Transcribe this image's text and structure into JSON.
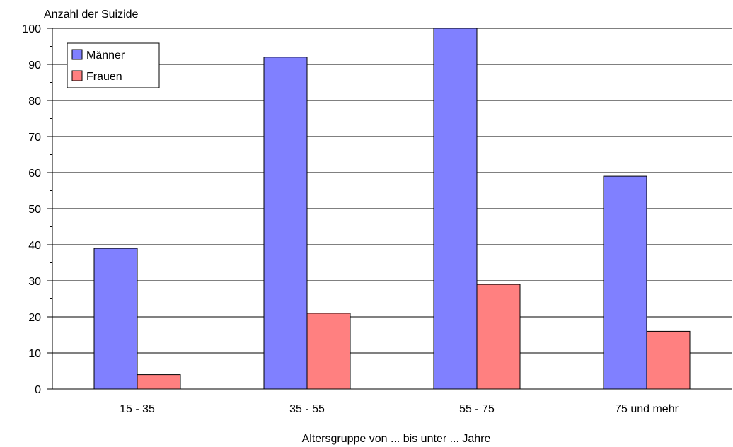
{
  "chart_data": {
    "type": "bar",
    "ylabel": "Anzahl der Suizide",
    "xlabel": "Altersgruppe von ... bis unter ... Jahre",
    "categories": [
      "15 - 35",
      "35 - 55",
      "55 - 75",
      "75 und mehr"
    ],
    "series": [
      {
        "name": "Männer",
        "values": [
          39,
          92,
          100,
          59
        ],
        "color": "#8080ff"
      },
      {
        "name": "Frauen",
        "values": [
          4,
          21,
          29,
          16
        ],
        "color": "#ff8080"
      }
    ],
    "ylim": [
      0,
      100
    ],
    "yticks": [
      "0",
      "10",
      "20",
      "30",
      "40",
      "50",
      "60",
      "70",
      "80",
      "90",
      "100"
    ],
    "grid": true,
    "legend_position": "top-left"
  }
}
